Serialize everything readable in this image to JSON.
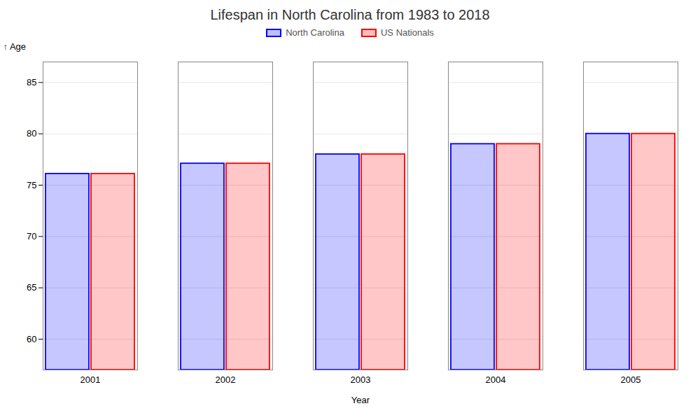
{
  "chart_data": {
    "type": "bar",
    "title": "Lifespan in North Carolina from 1983 to 2018",
    "xlabel": "Year",
    "ylabel": "Age",
    "categories": [
      "2001",
      "2002",
      "2003",
      "2004",
      "2005"
    ],
    "series": [
      {
        "name": "North Carolina",
        "color": "#0000ff",
        "values": [
          76.1,
          77.1,
          78.0,
          79.0,
          80.0
        ]
      },
      {
        "name": "US Nationals",
        "color": "#ff0000",
        "values": [
          76.1,
          77.1,
          78.0,
          79.0,
          80.0
        ]
      }
    ],
    "ylim": [
      57,
      87
    ],
    "yticks": [
      60,
      65,
      70,
      75,
      80,
      85
    ],
    "grid": true,
    "legend": "top"
  }
}
